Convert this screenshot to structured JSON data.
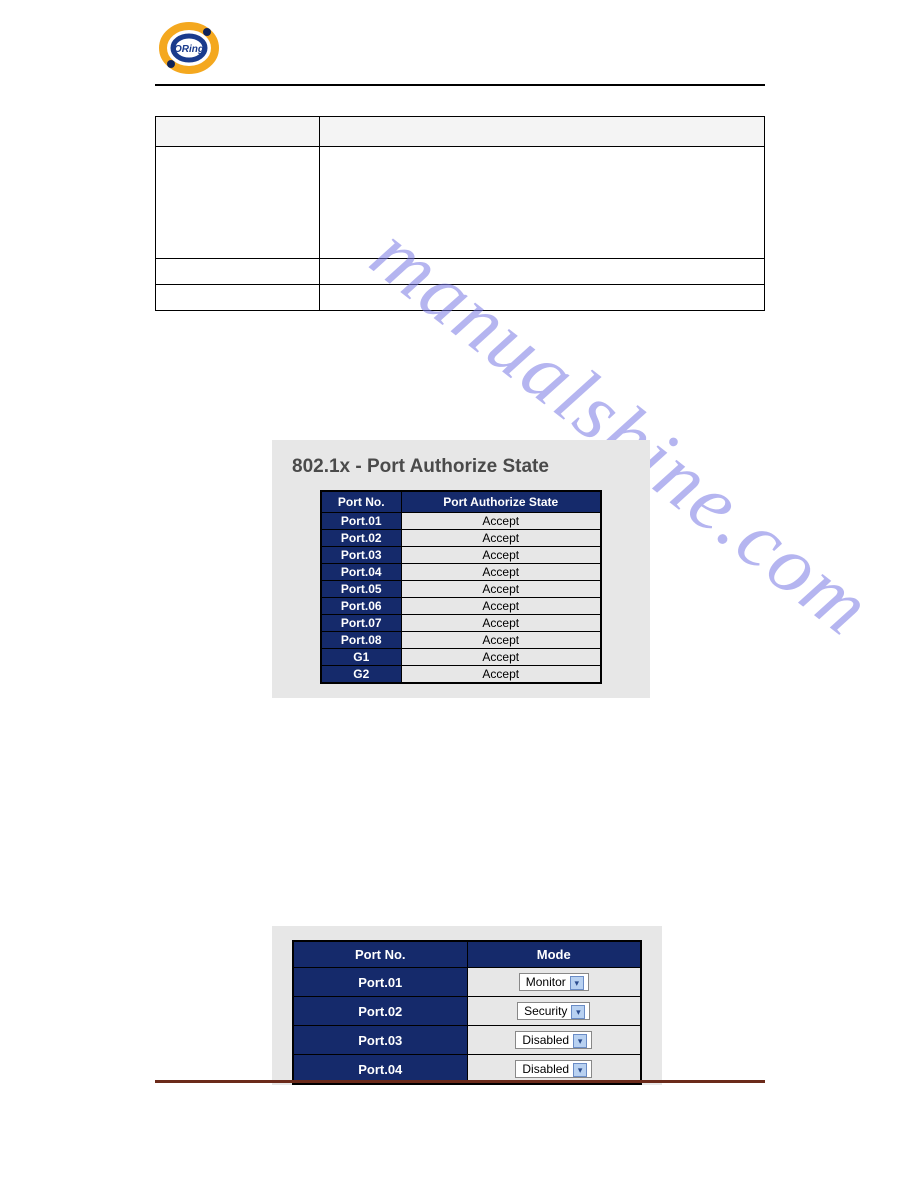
{
  "logo": {
    "outer_color": "#f4a81f",
    "inner_color": "#1a3b8c",
    "dot_color": "#0f2358",
    "text": "ORing",
    "text_color": "#1a3b8c"
  },
  "main_table": {
    "header_bg": "#f4f4f4",
    "columns": [
      "",
      ""
    ],
    "rows": [
      [
        "",
        ""
      ],
      [
        "",
        ""
      ],
      [
        "",
        ""
      ]
    ]
  },
  "panel1": {
    "title": "802.1x - Port Authorize State",
    "header_port": "Port No.",
    "header_state": "Port Authorize State",
    "header_bg": "#152a6b",
    "header_fg": "#ffffff",
    "cell_bg": "#e7e7e7",
    "rows": [
      {
        "port": "Port.01",
        "state": "Accept"
      },
      {
        "port": "Port.02",
        "state": "Accept"
      },
      {
        "port": "Port.03",
        "state": "Accept"
      },
      {
        "port": "Port.04",
        "state": "Accept"
      },
      {
        "port": "Port.05",
        "state": "Accept"
      },
      {
        "port": "Port.06",
        "state": "Accept"
      },
      {
        "port": "Port.07",
        "state": "Accept"
      },
      {
        "port": "Port.08",
        "state": "Accept"
      },
      {
        "port": "G1",
        "state": "Accept"
      },
      {
        "port": "G2",
        "state": "Accept"
      }
    ]
  },
  "panel2": {
    "header_port": "Port No.",
    "header_mode": "Mode",
    "header_bg": "#152a6b",
    "header_fg": "#ffffff",
    "dropdown_bg": "#ffffff",
    "dropdown_btn_bg": "#b8d1f1",
    "rows": [
      {
        "port": "Port.01",
        "mode": "Monitor"
      },
      {
        "port": "Port.02",
        "mode": "Security"
      },
      {
        "port": "Port.03",
        "mode": "Disabled"
      },
      {
        "port": "Port.04",
        "mode": "Disabled"
      }
    ]
  },
  "watermark": {
    "text": "manualshine.com",
    "color": "rgba(120,120,228,0.55)"
  },
  "footer_rule_color": "#6b2a1a"
}
